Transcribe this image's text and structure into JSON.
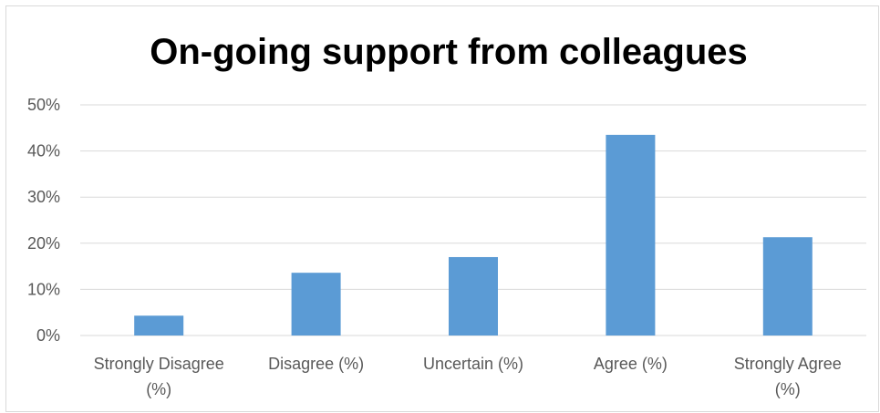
{
  "chart_data": {
    "type": "bar",
    "title": "On-going support from colleagues",
    "xlabel": "",
    "ylabel": "",
    "categories": [
      [
        "Strongly Disagree",
        "(%)"
      ],
      [
        "Disagree (%)"
      ],
      [
        "Uncertain (%)"
      ],
      [
        "Agree (%)"
      ],
      [
        "Strongly Agree",
        "(%)"
      ]
    ],
    "values": [
      4.3,
      13.6,
      17.0,
      43.5,
      21.3
    ],
    "ylim": [
      0,
      50
    ],
    "yticks": [
      0,
      10,
      20,
      30,
      40,
      50
    ],
    "ytick_labels": [
      "0%",
      "10%",
      "20%",
      "30%",
      "40%",
      "50%"
    ],
    "grid": true,
    "legend": "none",
    "bar_color": "#5b9bd5"
  }
}
